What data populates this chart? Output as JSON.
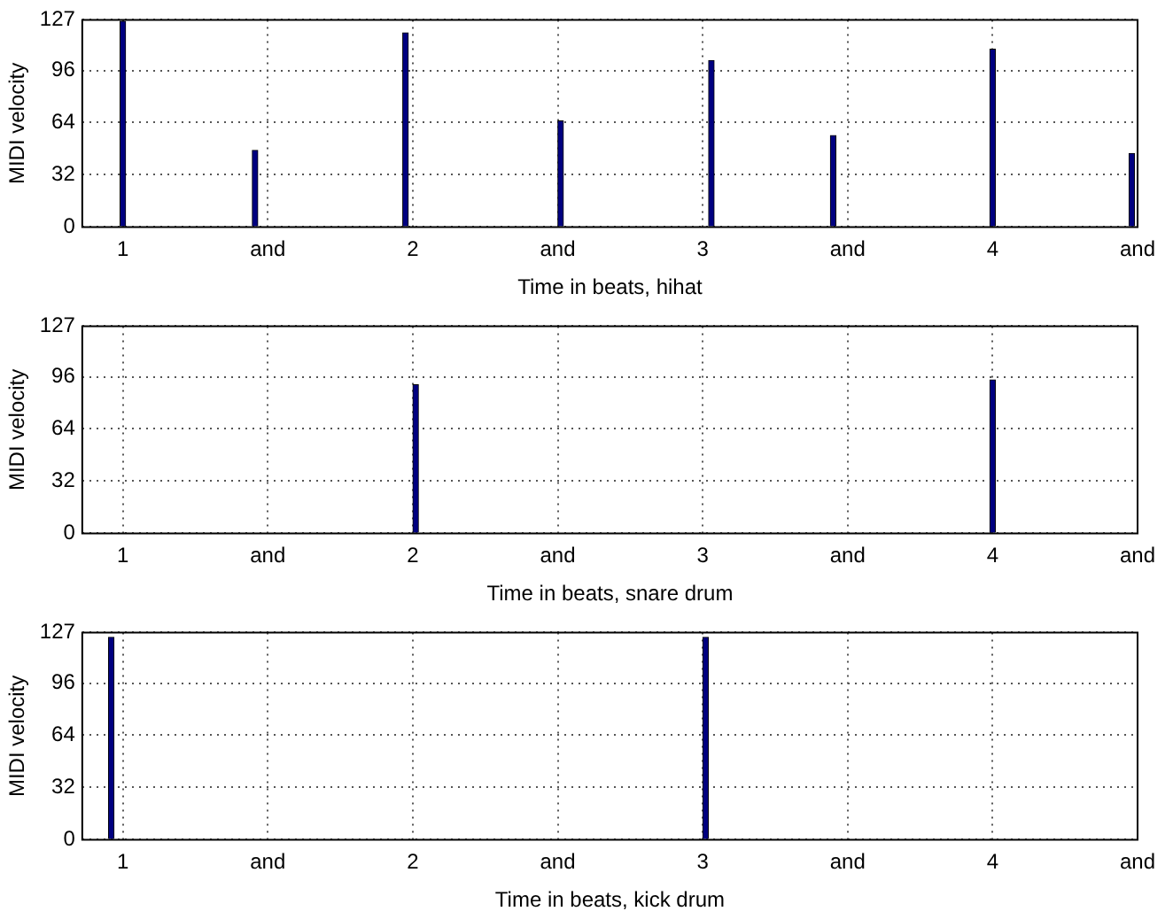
{
  "chart_data": [
    {
      "type": "bar",
      "x": [
        1.0,
        1.456,
        1.975,
        2.51,
        3.03,
        3.45,
        4.0,
        4.48
      ],
      "values": [
        126,
        47,
        119,
        65,
        102,
        56,
        109,
        45
      ],
      "color": "#000080",
      "xlim": [
        0.86,
        4.5
      ],
      "xticks": [
        1,
        {
          "value": 1.5,
          "label": "and"
        },
        2,
        {
          "value": 2.5,
          "label": "and"
        },
        3,
        {
          "value": 3.5,
          "label": "and"
        },
        4,
        {
          "value": 4.5,
          "label": "and"
        }
      ],
      "ylim": [
        0,
        127
      ],
      "yticks": [
        0,
        32,
        64,
        96,
        127
      ],
      "xlabel": "Time in beats, hihat",
      "ylabel": "MIDI velocity",
      "grid": true
    },
    {
      "type": "bar",
      "x": [
        2.01,
        4.0
      ],
      "values": [
        91,
        94
      ],
      "color": "#000080",
      "xlim": [
        0.86,
        4.5
      ],
      "xticks": [
        1,
        {
          "value": 1.5,
          "label": "and"
        },
        2,
        {
          "value": 2.5,
          "label": "and"
        },
        3,
        {
          "value": 3.5,
          "label": "and"
        },
        4,
        {
          "value": 4.5,
          "label": "and"
        }
      ],
      "ylim": [
        0,
        127
      ],
      "yticks": [
        0,
        32,
        64,
        96,
        127
      ],
      "xlabel": "Time in beats, snare drum",
      "ylabel": "MIDI velocity",
      "grid": true
    },
    {
      "type": "bar",
      "x": [
        0.96,
        3.01
      ],
      "values": [
        124,
        124
      ],
      "color": "#000080",
      "xlim": [
        0.86,
        4.5
      ],
      "xticks": [
        1,
        {
          "value": 1.5,
          "label": "and"
        },
        2,
        {
          "value": 2.5,
          "label": "and"
        },
        3,
        {
          "value": 3.5,
          "label": "and"
        },
        4,
        {
          "value": 4.5,
          "label": "and"
        }
      ],
      "ylim": [
        0,
        127
      ],
      "yticks": [
        0,
        32,
        64,
        96,
        127
      ],
      "xlabel": "Time in beats, kick drum",
      "ylabel": "MIDI velocity",
      "grid": true
    }
  ]
}
